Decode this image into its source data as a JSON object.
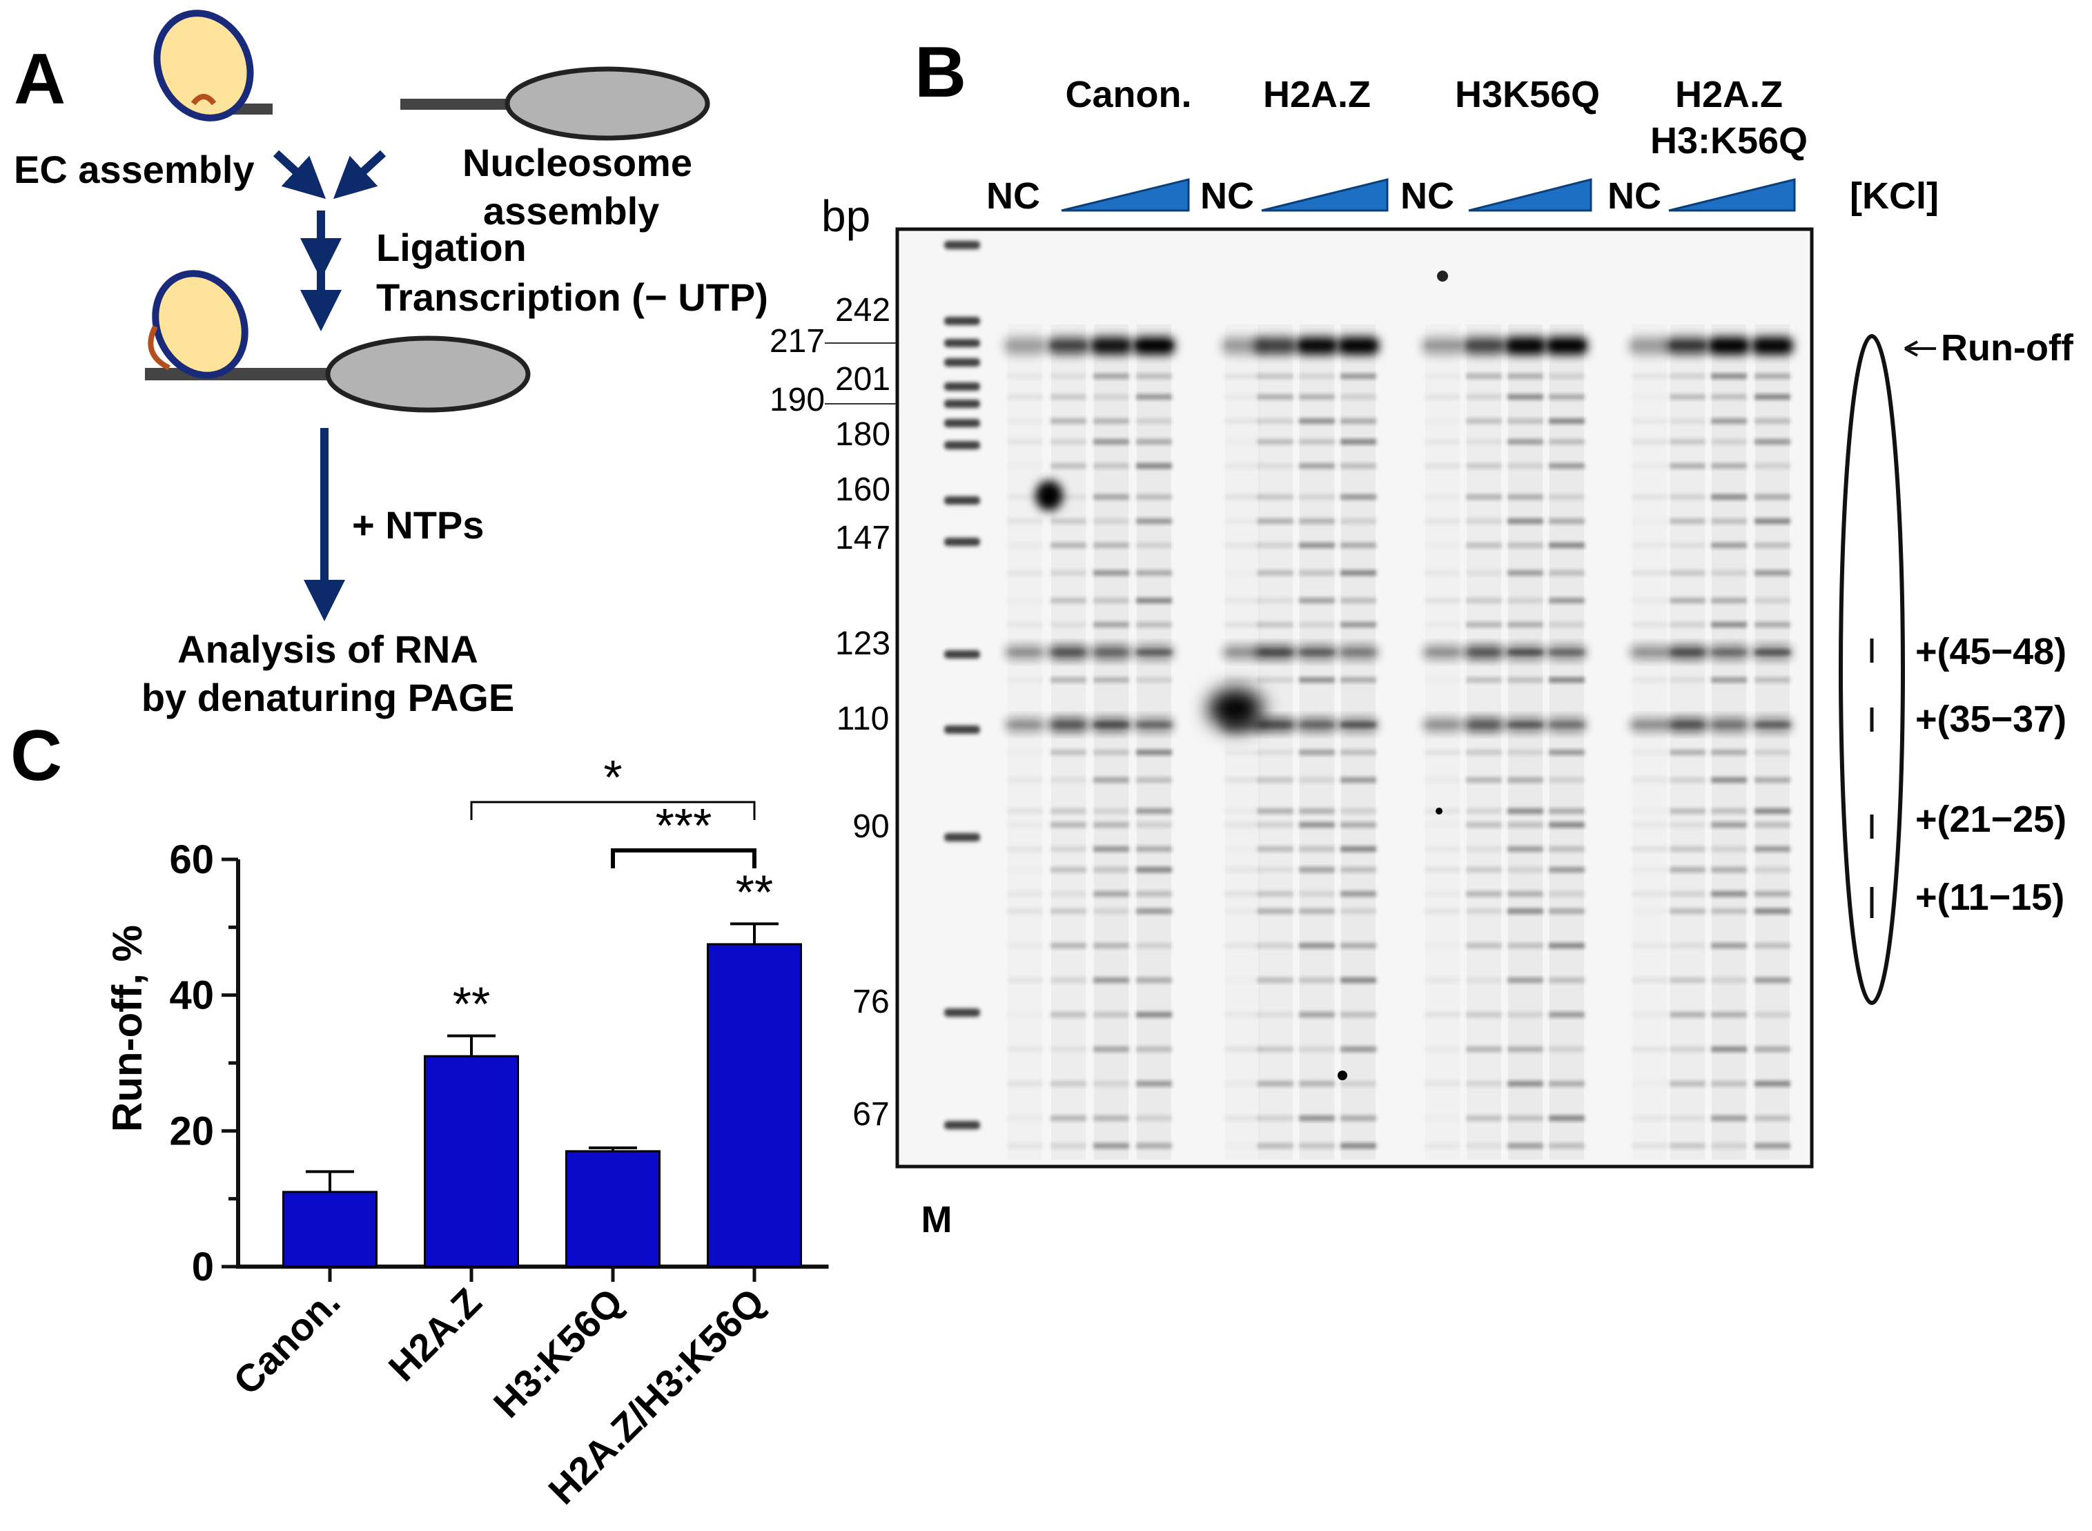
{
  "panelA": {
    "label": "A",
    "ec_assembly": "EC assembly",
    "nucleosome_assembly_1": "Nucleosome",
    "nucleosome_assembly_2": "assembly",
    "ligation": "Ligation",
    "transcription": "Transcription (− UTP)",
    "ntps": "+ NTPs",
    "analysis_1": "Analysis of RNA",
    "analysis_2": "by denaturing PAGE",
    "colors": {
      "polymerase_fill": "#fde49a",
      "polymerase_stroke": "#1a2a7a",
      "nucleosome": "#b3b3b3",
      "arrow": "#0d2a6b",
      "rna": "#b5501e"
    }
  },
  "panelB": {
    "label": "B",
    "groups": [
      "Canon.",
      "H2A.Z",
      "H3K56Q",
      "H2A.Z",
      "H3:K56Q"
    ],
    "nc_label": "NC",
    "kcl_label": "[KCl]",
    "bp_label": "bp",
    "marker_label": "M",
    "sizes": [
      "242",
      "217",
      "201",
      "190",
      "180",
      "160",
      "147",
      "123",
      "110",
      "90",
      "76",
      "67"
    ],
    "runoff_label": "Run-off",
    "pause_labels": [
      "+(45−48)",
      "+(35−37)",
      "+(21−25)",
      "+(11−15)"
    ],
    "colors": {
      "wedge": "#1d6fc4"
    }
  },
  "panelC": {
    "label": "C",
    "ylabel": "Run-off, %",
    "yticks": [
      "0",
      "20",
      "40",
      "60"
    ],
    "sig_between": [
      "*",
      "***"
    ],
    "colors": {
      "bar": "#0a0ac8"
    }
  },
  "chart_data": {
    "type": "bar",
    "categories": [
      "Canon.",
      "H2A.Z",
      "H3:K56Q",
      "H2A.Z/H3:K56Q"
    ],
    "values": [
      11,
      31,
      17,
      47.5
    ],
    "errors": [
      3,
      3,
      0.5,
      3
    ],
    "significance": [
      "",
      "**",
      "",
      "**"
    ],
    "ylabel": "Run-off, %",
    "ylim": [
      0,
      60
    ],
    "brackets": [
      {
        "from": "H2A.Z",
        "to": "H2A.Z/H3:K56Q",
        "label": "*"
      },
      {
        "from": "H3:K56Q",
        "to": "H2A.Z/H3:K56Q",
        "label": "***"
      }
    ]
  }
}
